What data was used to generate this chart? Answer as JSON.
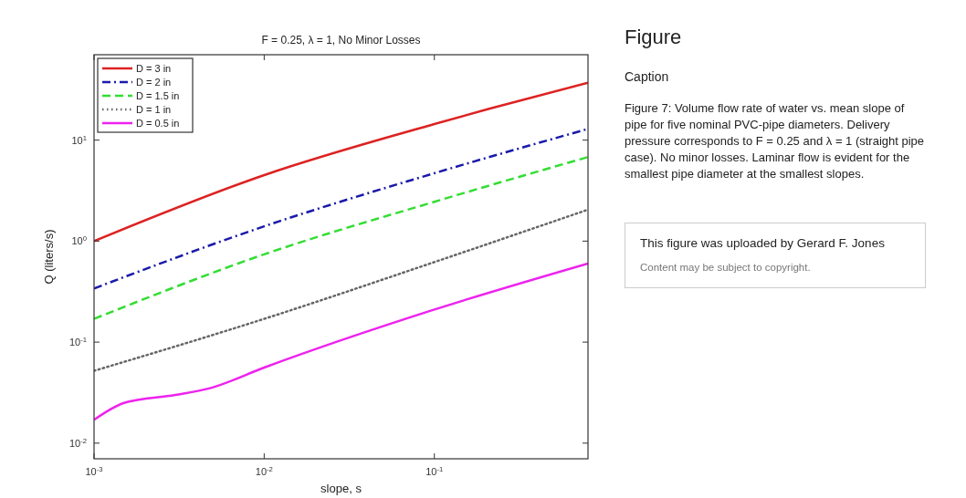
{
  "chart_data": [
    {
      "type": "line",
      "title": "F = 0.25, λ = 1, No Minor Losses",
      "xlabel": "slope, s",
      "ylabel": "Q (liters/s)",
      "log": "xy",
      "xlim": [
        0.001,
        0.8
      ],
      "ylim": [
        0.007,
        70
      ],
      "xticks": [
        {
          "value": 0.001,
          "label": "10$^{-3}$"
        },
        {
          "value": 0.01,
          "label": "10$^{-2}$"
        },
        {
          "value": 0.1,
          "label": "10$^{-1}$"
        }
      ],
      "yticks": [
        {
          "value": 0.01,
          "label": "10$^{-2}$"
        },
        {
          "value": 0.1,
          "label": "10$^{-1}$"
        },
        {
          "value": 1,
          "label": "10$^{0}$"
        },
        {
          "value": 10,
          "label": "10$^{1}$"
        }
      ],
      "legend": "top left",
      "grid": false,
      "series": [
        {
          "name": "D = 3 in",
          "color": "#dd2222",
          "line_style": "solid",
          "x": [
            0.001,
            0.01,
            0.1,
            0.21,
            0.8
          ],
          "values": [
            1.0,
            4.5,
            14.4,
            20.4,
            37
          ]
        },
        {
          "name": "D = 2 in",
          "color": "#1a1aaa",
          "line_style": "dashdot",
          "x": [
            0.001,
            0.01,
            0.1,
            0.8
          ],
          "values": [
            0.34,
            1.4,
            4.7,
            12.9
          ]
        },
        {
          "name": "D = 1.5 in",
          "color": "#33dd33",
          "line_style": "dashed",
          "x": [
            0.001,
            0.01,
            0.1,
            0.8
          ],
          "values": [
            0.17,
            0.74,
            2.45,
            6.8
          ]
        },
        {
          "name": "D = 1 in",
          "color": "#666666",
          "line_style": "dotted",
          "x": [
            0.001,
            0.01,
            0.1,
            0.8
          ],
          "values": [
            0.052,
            0.17,
            0.62,
            2.05
          ]
        },
        {
          "name": "D = 0.5 in",
          "color": "#ee22ee",
          "line_style": "solid",
          "x": [
            0.001,
            0.0015,
            0.003,
            0.0048,
            0.01,
            0.1,
            0.8
          ],
          "values": [
            0.017,
            0.025,
            0.03,
            0.035,
            0.056,
            0.21,
            0.6
          ]
        }
      ]
    },
    {
      "type": "other",
      "title": "Figure",
      "subtitle": "Caption",
      "annotations": [
        "Figure 7: Volume flow rate of water vs. mean slope of pipe for five nominal PVC-pipe diameters. Delivery pressure corresponds to F = 0.25 and λ = 1 (straight pipe case). No minor losses. Laminar flow is evident for the smallest pipe diameter at the smallest slopes.",
        "This figure was uploaded by Gerard F. Jones",
        "Content may be subject to copyright."
      ]
    }
  ]
}
